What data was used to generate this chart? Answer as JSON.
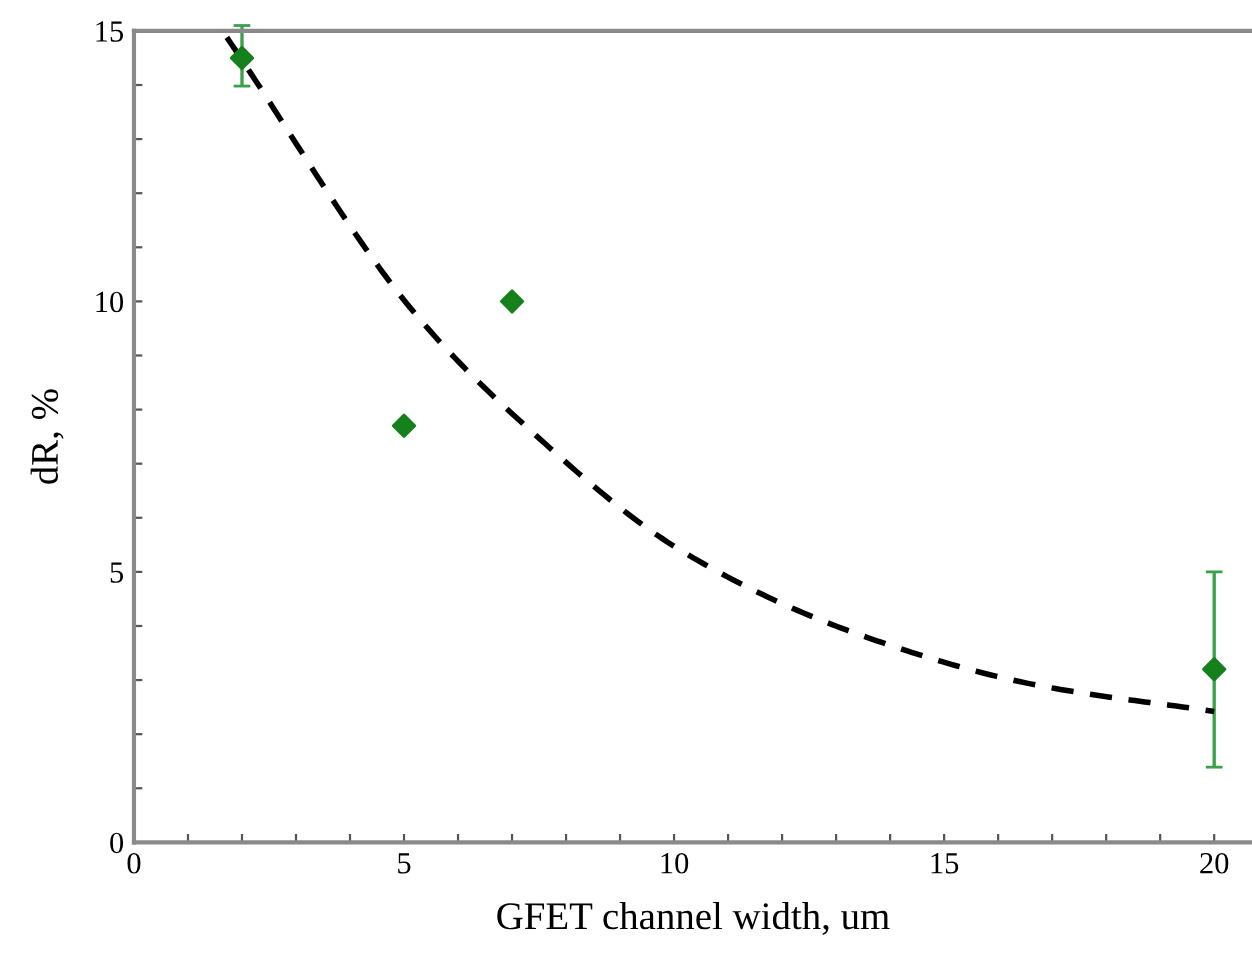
{
  "chart_data": {
    "type": "scatter",
    "xlabel": "GFET channel width, um",
    "ylabel": "dR, %",
    "xlim": [
      0,
      20.7
    ],
    "ylim": [
      0,
      15
    ],
    "xticks": [
      0,
      {
        "value": 1,
        "label": null
      },
      {
        "value": 2,
        "label": null
      },
      {
        "value": 3,
        "label": null
      },
      {
        "value": 4,
        "label": null
      },
      5,
      {
        "value": 6,
        "label": null
      },
      {
        "value": 7,
        "label": null
      },
      {
        "value": 8,
        "label": null
      },
      {
        "value": 9,
        "label": null
      },
      10,
      {
        "value": 11,
        "label": null
      },
      {
        "value": 12,
        "label": null
      },
      {
        "value": 13,
        "label": null
      },
      {
        "value": 14,
        "label": null
      },
      15,
      {
        "value": 16,
        "label": null
      },
      {
        "value": 17,
        "label": null
      },
      {
        "value": 18,
        "label": null
      },
      {
        "value": 19,
        "label": null
      },
      20
    ],
    "yticks": [
      0,
      {
        "value": 1,
        "label": null
      },
      {
        "value": 2,
        "label": null
      },
      {
        "value": 3,
        "label": null
      },
      {
        "value": 4,
        "label": null
      },
      5,
      {
        "value": 6,
        "label": null
      },
      {
        "value": 7,
        "label": null
      },
      {
        "value": 8,
        "label": null
      },
      {
        "value": 9,
        "label": null
      },
      10,
      {
        "value": 11,
        "label": null
      },
      {
        "value": 12,
        "label": null
      },
      {
        "value": 13,
        "label": null
      },
      {
        "value": 14,
        "label": null
      },
      15
    ],
    "grid": false,
    "legend": false,
    "series": [
      {
        "marker": "diamond",
        "color": "#16801c",
        "x": [
          2,
          5,
          7,
          20
        ],
        "values": [
          14.5,
          7.7,
          10.0,
          3.2
        ],
        "errors": [
          [
            13.98,
            15.1
          ],
          null,
          null,
          [
            1.39,
            5.0
          ]
        ]
      },
      {
        "type": "line",
        "line_style": "dashed",
        "color": "#000000",
        "x": [
          1.72,
          5.2,
          7.06,
          10.2,
          13.4,
          16.7,
          20.0
        ],
        "values": [
          14.88,
          9.78,
          7.87,
          5.35,
          3.85,
          2.91,
          2.42
        ]
      }
    ]
  }
}
